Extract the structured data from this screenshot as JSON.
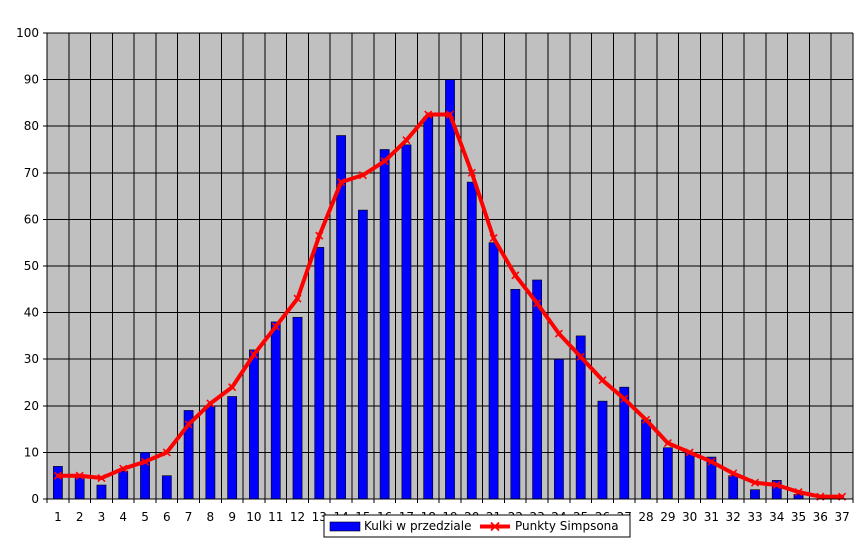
{
  "chart_data": {
    "type": "bar+line",
    "categories": [
      "1",
      "2",
      "3",
      "4",
      "5",
      "6",
      "7",
      "8",
      "9",
      "10",
      "11",
      "12",
      "13",
      "14",
      "15",
      "16",
      "17",
      "18",
      "19",
      "20",
      "21",
      "22",
      "23",
      "24",
      "25",
      "26",
      "27",
      "28",
      "29",
      "30",
      "31",
      "32",
      "33",
      "34",
      "35",
      "36",
      "37"
    ],
    "series": [
      {
        "name": "Kulki w przedziale",
        "type": "bar",
        "values": [
          7,
          5,
          3,
          6,
          10,
          5,
          19,
          20,
          22,
          32,
          38,
          39,
          54,
          78,
          62,
          75,
          76,
          82,
          90,
          68,
          55,
          45,
          47,
          30,
          35,
          21,
          24,
          17,
          11,
          10,
          9,
          5,
          2,
          4,
          1,
          0,
          0
        ]
      },
      {
        "name": "Punkty Simpsona",
        "type": "line",
        "values": [
          5,
          5,
          4.5,
          6.5,
          8,
          10,
          16,
          20.5,
          24,
          31,
          37,
          43,
          56.5,
          68,
          69.5,
          72.5,
          77,
          82.5,
          82.5,
          70,
          56,
          48,
          42,
          35.5,
          30.5,
          25.5,
          21.5,
          17,
          12,
          10,
          8,
          5.5,
          3.5,
          3,
          1.5,
          0.5,
          0.5
        ]
      }
    ],
    "ylim": [
      0,
      100
    ],
    "yticks": [
      0,
      10,
      20,
      30,
      40,
      50,
      60,
      70,
      80,
      90,
      100
    ],
    "grid": true,
    "legend_position": "bottom",
    "colors": {
      "plot_background": "#c0c0c0",
      "grid": "#000000",
      "bar": "#0000ff",
      "line": "#ff0000"
    }
  }
}
